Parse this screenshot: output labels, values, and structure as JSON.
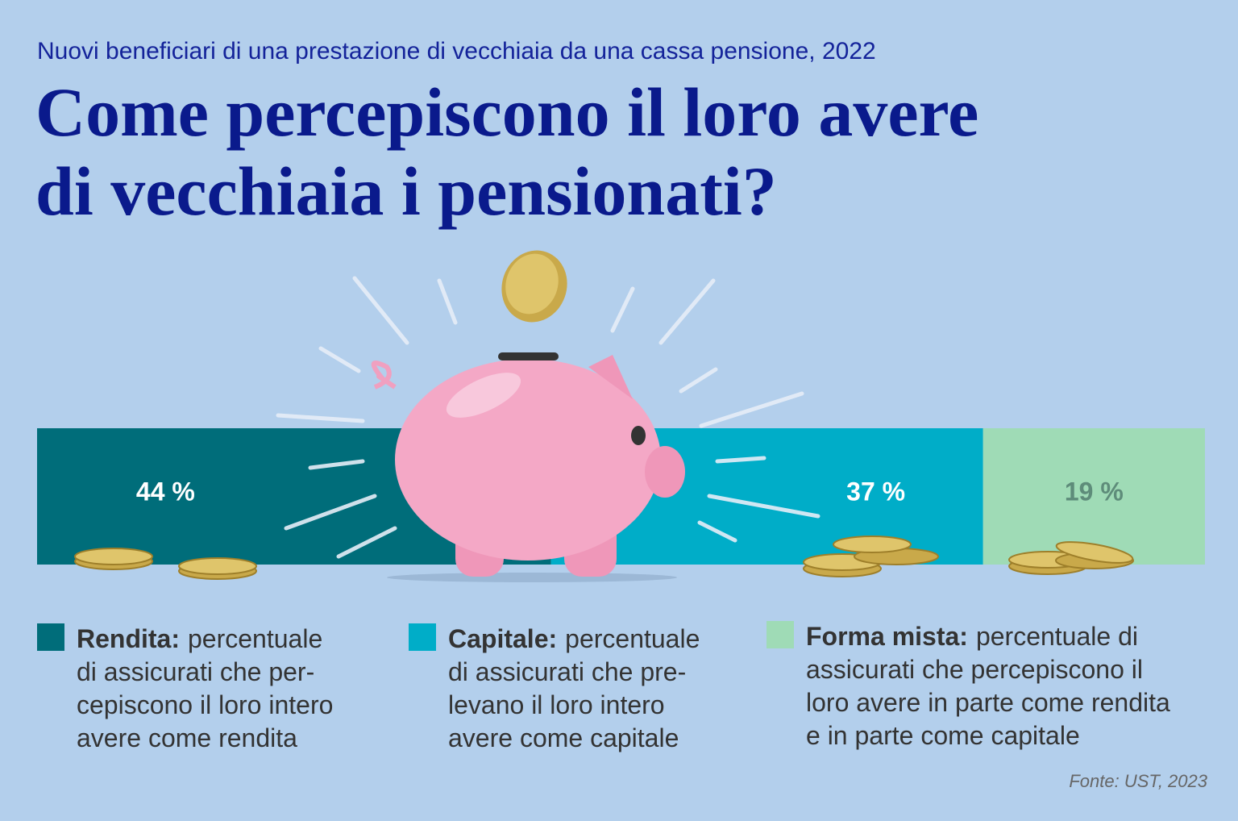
{
  "chart_data": {
    "type": "stacked-bar",
    "subtitle": "Nuovi beneficiari di una prestazione di vecchiaia da una cassa pensione, 2022",
    "title": [
      "Come percepiscono il loro avere",
      "di vecchiaia i pensionati?"
    ],
    "xlim": [
      0,
      100
    ],
    "series": [
      {
        "name": "Rendita:",
        "color": "#006d7a",
        "label_color": "#ffffff",
        "values": [
          44
        ],
        "value_labels": [
          "44 %"
        ],
        "description": [
          "percentuale",
          "di assicurati che per-",
          "cepiscono il loro intero",
          "avere come rendita"
        ]
      },
      {
        "name": "Capitale:",
        "color": "#00adc8",
        "label_color": "#ffffff",
        "values": [
          37
        ],
        "value_labels": [
          "37 %"
        ],
        "description": [
          "percentuale",
          "di assicurati che pre-",
          "levano il loro intero",
          "avere come capitale"
        ]
      },
      {
        "name": "Forma mista:",
        "color": "#9fdbb6",
        "label_color": "#5e8c7a",
        "values": [
          19
        ],
        "value_labels": [
          "19 %"
        ],
        "description": [
          "percentuale di",
          "assicurati che percepiscono il",
          "loro avere in parte come rendita",
          "e in parte come capitale"
        ]
      }
    ],
    "source": "Fonte: UST, 2023"
  }
}
